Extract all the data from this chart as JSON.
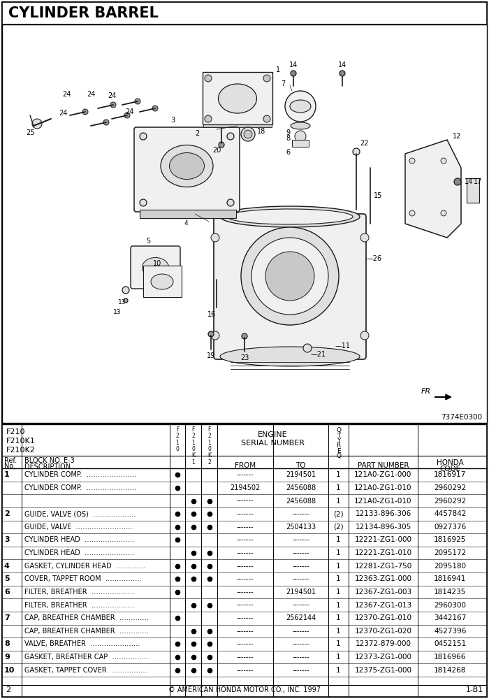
{
  "title": "CYLINDER BARREL",
  "diagram_ref": "7374E0300",
  "page_left": "2",
  "page_right": "1-B1",
  "copyright": "© AMERICAN HONDA MOTOR CO., INC. 1997",
  "models": [
    "F210",
    "F210K1",
    "F210K2"
  ],
  "block_no": "E-3",
  "parts": [
    {
      "ref": "1",
      "desc": "CYLINDER COMP.  ………………….",
      "f0": true,
      "fk1": false,
      "fk2": false,
      "from": "-------",
      "to": "2194501",
      "qty": "1",
      "part": "121A0-ZG1-000",
      "code": "1816917"
    },
    {
      "ref": "",
      "desc": "CYLINDER COMP.  ………………….",
      "f0": true,
      "fk1": false,
      "fk2": false,
      "from": "2194502",
      "to": "2456088",
      "qty": "1",
      "part": "121A0-ZG1-010",
      "code": "2960292"
    },
    {
      "ref": "",
      "desc": "",
      "f0": false,
      "fk1": true,
      "fk2": true,
      "from": "-------",
      "to": "2456088",
      "qty": "1",
      "part": "121A0-ZG1-010",
      "code": "2960292"
    },
    {
      "ref": "2",
      "desc": "GUIDE, VALVE (OS)  ……………….",
      "f0": true,
      "fk1": true,
      "fk2": true,
      "from": "-------",
      "to": "-------",
      "qty": "(2)",
      "part": "12133-896-306",
      "code": "4457842"
    },
    {
      "ref": "",
      "desc": "GUIDE, VALVE  …………………….",
      "f0": true,
      "fk1": true,
      "fk2": true,
      "from": "-------",
      "to": "2504133",
      "qty": "(2)",
      "part": "12134-896-305",
      "code": "0927376"
    },
    {
      "ref": "3",
      "desc": "CYLINDER HEAD  ………………….",
      "f0": true,
      "fk1": false,
      "fk2": false,
      "from": "-------",
      "to": "-------",
      "qty": "1",
      "part": "12221-ZG1-000",
      "code": "1816925"
    },
    {
      "ref": "",
      "desc": "CYLINDER HEAD  ………………….",
      "f0": false,
      "fk1": true,
      "fk2": true,
      "from": "-------",
      "to": "-------",
      "qty": "1",
      "part": "12221-ZG1-010",
      "code": "2095172"
    },
    {
      "ref": "4",
      "desc": "GASKET, CYLINDER HEAD  ………….",
      "f0": true,
      "fk1": true,
      "fk2": true,
      "from": "-------",
      "to": "-------",
      "qty": "1",
      "part": "12281-ZG1-750",
      "code": "2095180"
    },
    {
      "ref": "5",
      "desc": "COVER, TAPPET ROOM  …………….",
      "f0": true,
      "fk1": true,
      "fk2": true,
      "from": "-------",
      "to": "-------",
      "qty": "1",
      "part": "12363-ZG1-000",
      "code": "1816941"
    },
    {
      "ref": "6",
      "desc": "FILTER, BREATHER  ……………….",
      "f0": true,
      "fk1": false,
      "fk2": false,
      "from": "-------",
      "to": "2194501",
      "qty": "1",
      "part": "12367-ZG1-003",
      "code": "1814235"
    },
    {
      "ref": "",
      "desc": "FILTER, BREATHER  ……………….",
      "f0": false,
      "fk1": true,
      "fk2": true,
      "from": "-------",
      "to": "-------",
      "qty": "1",
      "part": "12367-ZG1-013",
      "code": "2960300"
    },
    {
      "ref": "7",
      "desc": "CAP, BREATHER CHAMBER  ………….",
      "f0": true,
      "fk1": false,
      "fk2": false,
      "from": "-------",
      "to": "2562144",
      "qty": "1",
      "part": "12370-ZG1-010",
      "code": "3442167"
    },
    {
      "ref": "",
      "desc": "CAP, BREATHER CHAMBER  ………….",
      "f0": false,
      "fk1": true,
      "fk2": true,
      "from": "-------",
      "to": "-------",
      "qty": "1",
      "part": "12370-ZG1-020",
      "code": "4527396"
    },
    {
      "ref": "8",
      "desc": "VALVE, BREATHER  ………………….",
      "f0": true,
      "fk1": true,
      "fk2": true,
      "from": "-------",
      "to": "-------",
      "qty": "1",
      "part": "12372-879-000",
      "code": "0452151"
    },
    {
      "ref": "9",
      "desc": "GASKET, BREATHER CAP  …………….",
      "f0": true,
      "fk1": true,
      "fk2": true,
      "from": "-------",
      "to": "-------",
      "qty": "1",
      "part": "12373-ZG1-000",
      "code": "1816966"
    },
    {
      "ref": "10",
      "desc": "GASKET, TAPPET COVER  …………….",
      "f0": true,
      "fk1": true,
      "fk2": true,
      "from": "-------",
      "to": "-------",
      "qty": "1",
      "part": "12375-ZG1-000",
      "code": "1814268"
    }
  ],
  "bg_color": "#ffffff",
  "border_color": "#000000"
}
